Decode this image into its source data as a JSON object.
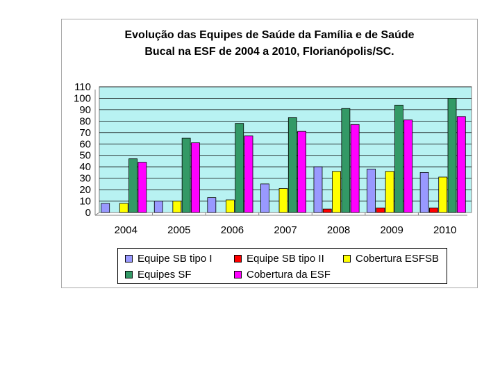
{
  "chart_data": {
    "type": "bar",
    "title_lines": [
      "Evolução das Equipes de Saúde da Família e de Saúde",
      "Bucal na ESF de 2004 a 2010, Florianópolis/SC."
    ],
    "categories": [
      "2004",
      "2005",
      "2006",
      "2007",
      "2008",
      "2009",
      "2010"
    ],
    "ylim": [
      0,
      110
    ],
    "yticks": [
      "0",
      "10",
      "20",
      "30",
      "40",
      "50",
      "60",
      "70",
      "80",
      "90",
      "100",
      "110"
    ],
    "grid": true,
    "plot_background": "#b8f2f2",
    "legend_position": "bottom",
    "series": [
      {
        "name": "Equipe SB tipo I",
        "color": "#9999ff",
        "values": [
          8,
          10,
          13,
          25,
          40,
          38,
          35
        ]
      },
      {
        "name": "Equipe SB tipo II",
        "color": "#ff0000",
        "values": [
          0,
          0,
          0,
          0,
          3,
          4,
          4
        ]
      },
      {
        "name": "Cobertura ESFSB",
        "color": "#ffff00",
        "values": [
          8,
          10,
          11,
          21,
          36,
          36,
          31
        ]
      },
      {
        "name": "Equipes SF",
        "color": "#339966",
        "values": [
          47,
          65,
          78,
          83,
          91,
          94,
          100
        ]
      },
      {
        "name": "Cobertura da ESF",
        "color": "#ff00ff",
        "values": [
          44,
          61,
          67,
          71,
          77,
          81,
          84
        ]
      }
    ]
  }
}
